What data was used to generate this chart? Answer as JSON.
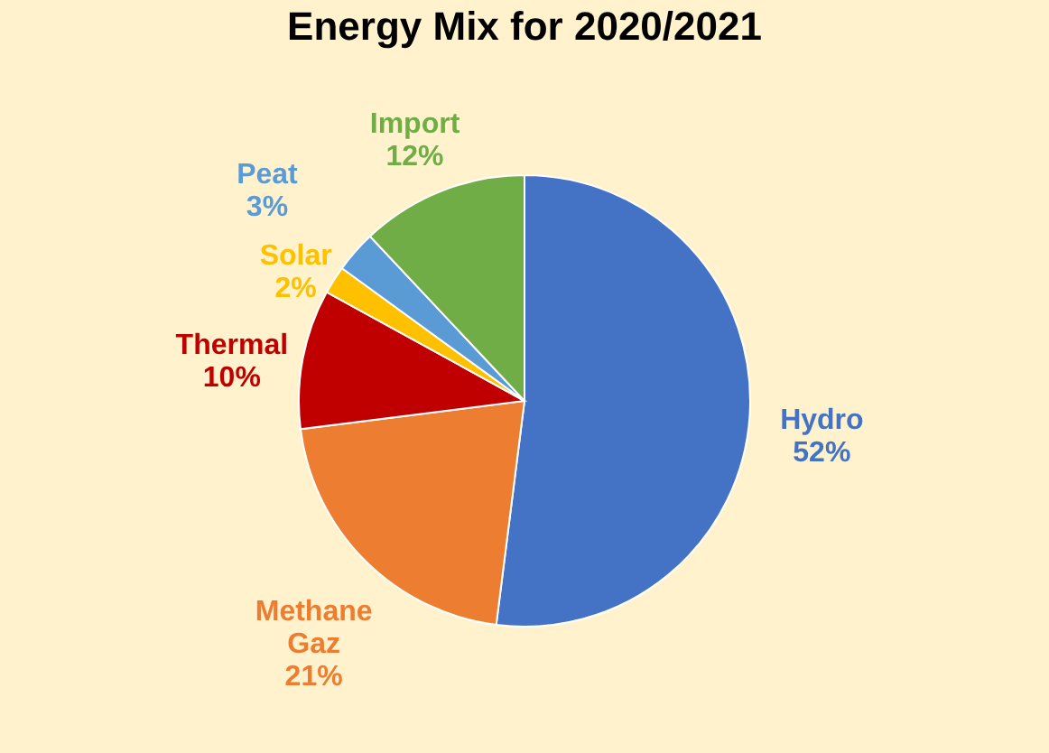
{
  "chart_data": {
    "type": "pie",
    "title": "Energy Mix for 2020/2021",
    "categories": [
      "Hydro",
      "Methane Gaz",
      "Thermal",
      "Solar",
      "Peat",
      "Import"
    ],
    "values": [
      52,
      21,
      10,
      2,
      3,
      12
    ],
    "value_labels": [
      "52%",
      "21%",
      "10%",
      "2%",
      "3%",
      "12%"
    ],
    "colors": [
      "#4472c4",
      "#ed7d31",
      "#c00000",
      "#ffc000",
      "#5b9bd5",
      "#70ad47"
    ],
    "legend": false
  }
}
